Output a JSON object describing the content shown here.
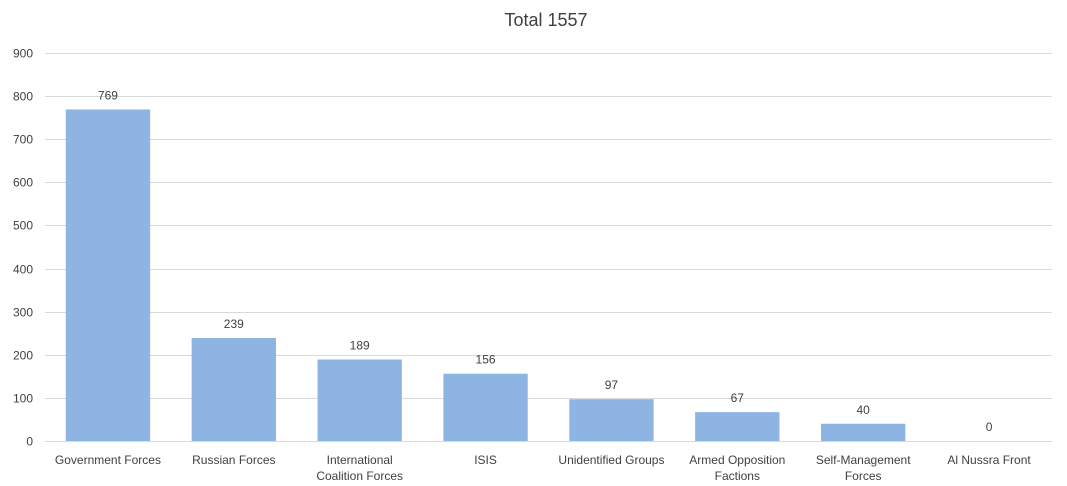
{
  "chart_data": {
    "type": "bar",
    "title": "Total 1557",
    "xlabel": "",
    "ylabel": "",
    "categories": [
      "Government Forces",
      "Russian Forces",
      "International Coalition Forces",
      "ISIS",
      "Unidentified Groups",
      "Armed Opposition Factions",
      "Self-Management Forces",
      "Al Nussra Front"
    ],
    "values": [
      769,
      239,
      189,
      156,
      97,
      67,
      40,
      0
    ],
    "ylim": [
      0,
      900
    ],
    "yticks": [
      0,
      100,
      200,
      300,
      400,
      500,
      600,
      700,
      800,
      900
    ],
    "grid": true,
    "legend": "none",
    "colors": {
      "bar": "#8db4e2",
      "grid": "#d9d9d9",
      "text": "#404040"
    }
  }
}
